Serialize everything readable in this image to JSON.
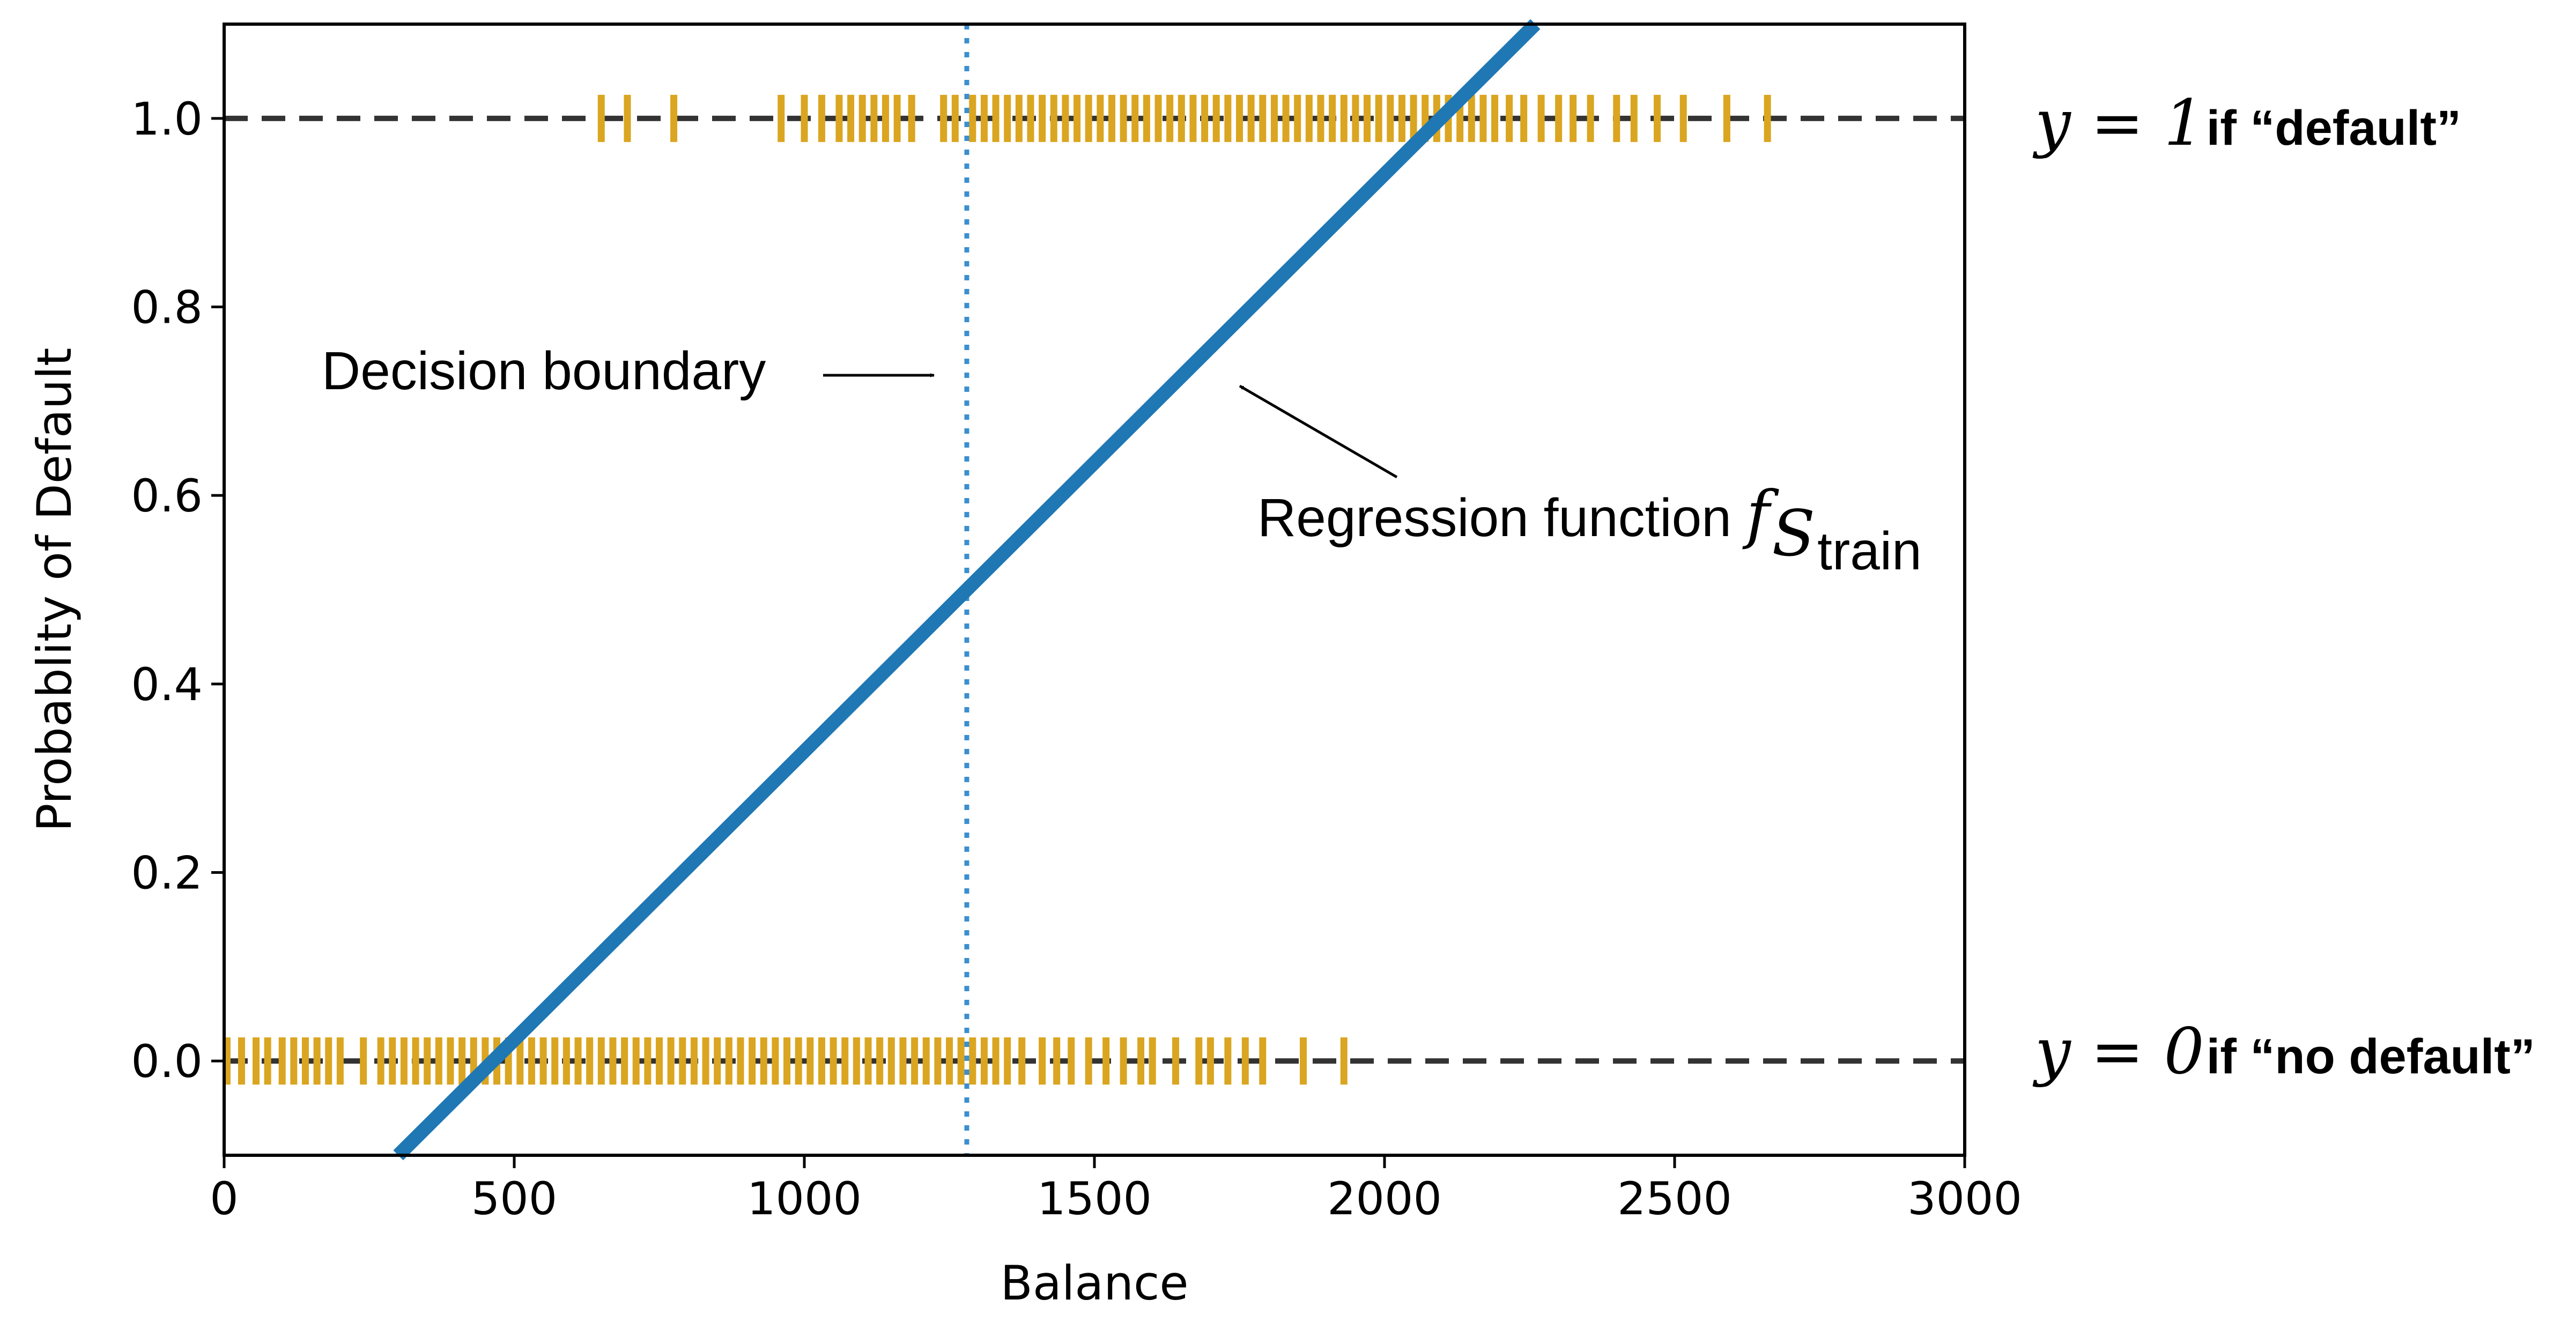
{
  "chart_data": {
    "type": "scatter",
    "xlabel": "Balance",
    "ylabel": "Probablity of Default",
    "xlim": [
      0,
      3000
    ],
    "ylim": [
      -0.1,
      1.1
    ],
    "x_ticks": [
      0,
      500,
      1000,
      1500,
      2000,
      2500,
      3000
    ],
    "x_tick_labels": [
      "0",
      "500",
      "1000",
      "1500",
      "2000",
      "2500",
      "3000"
    ],
    "y_ticks": [
      0.0,
      0.2,
      0.4,
      0.6,
      0.8,
      1.0
    ],
    "y_tick_labels": [
      "0.0",
      "0.2",
      "0.4",
      "0.6",
      "0.8",
      "1.0"
    ],
    "grid": false,
    "colors": {
      "rug": "#daa520",
      "regression": "#1f77b4",
      "boundary": "#3a8fd0",
      "reference": "#333333"
    },
    "reference_lines": [
      {
        "y": 1.0,
        "style": "dashed",
        "label_math": "y = 1",
        "label_text": "if “default”"
      },
      {
        "y": 0.0,
        "style": "dashed",
        "label_math": "y = 0",
        "label_text": "if “no default”"
      }
    ],
    "decision_boundary": {
      "x": 1280,
      "style": "dotted",
      "label": "Decision boundary"
    },
    "regression_line": {
      "x": [
        300,
        2260
      ],
      "y": [
        -0.1,
        1.1
      ],
      "label_prefix": "Regression function ",
      "label_math": "f",
      "label_sub": "S",
      "label_subsub": "train"
    },
    "series": [
      {
        "name": "default",
        "y": 1.0,
        "x": [
          650,
          695,
          775,
          960,
          1000,
          1030,
          1060,
          1080,
          1100,
          1120,
          1140,
          1160,
          1185,
          1240,
          1260,
          1290,
          1310,
          1330,
          1350,
          1370,
          1390,
          1410,
          1430,
          1450,
          1470,
          1490,
          1510,
          1530,
          1550,
          1570,
          1590,
          1610,
          1630,
          1650,
          1670,
          1690,
          1710,
          1730,
          1750,
          1770,
          1790,
          1810,
          1830,
          1850,
          1870,
          1890,
          1910,
          1930,
          1950,
          1970,
          1990,
          2010,
          2030,
          2050,
          2070,
          2090,
          2110,
          2130,
          2150,
          2170,
          2190,
          2215,
          2240,
          2270,
          2300,
          2325,
          2355,
          2400,
          2430,
          2470,
          2515,
          2590,
          2660
        ]
      },
      {
        "name": "no default",
        "y": 0.0,
        "x": [
          5,
          30,
          55,
          75,
          100,
          120,
          140,
          160,
          180,
          200,
          240,
          270,
          290,
          310,
          330,
          350,
          370,
          390,
          410,
          430,
          450,
          470,
          490,
          510,
          530,
          550,
          570,
          590,
          610,
          630,
          650,
          670,
          690,
          710,
          730,
          750,
          770,
          790,
          810,
          830,
          850,
          870,
          890,
          910,
          930,
          950,
          970,
          990,
          1010,
          1030,
          1050,
          1070,
          1090,
          1110,
          1130,
          1150,
          1170,
          1190,
          1210,
          1230,
          1250,
          1270,
          1290,
          1310,
          1330,
          1350,
          1375,
          1410,
          1435,
          1460,
          1490,
          1520,
          1550,
          1580,
          1600,
          1640,
          1680,
          1700,
          1730,
          1760,
          1790,
          1860,
          1930
        ]
      }
    ]
  }
}
